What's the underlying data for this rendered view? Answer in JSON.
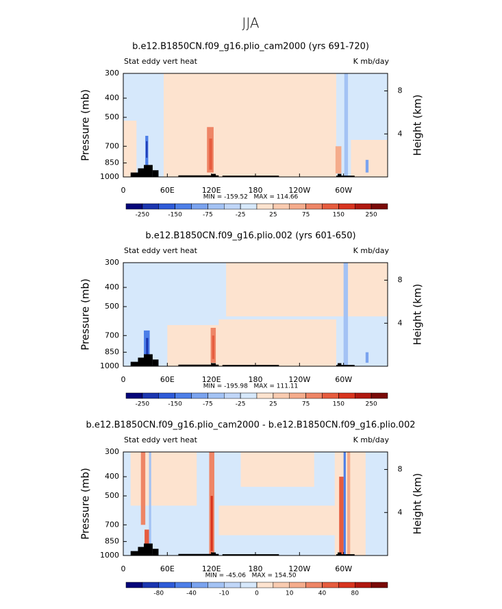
{
  "title": "JJA",
  "chart_data": [
    {
      "type": "contour",
      "title": "b.e12.B1850CN.f09_g16.plio_cam2000 (yrs 691-720)",
      "left_label": "Stat eddy vert heat",
      "right_label": "K mb/day",
      "ylabel": "Pressure (mb)",
      "y2label": "Height (km)",
      "xlim": [
        0,
        360
      ],
      "xticks": [
        0,
        {
          "value": 60,
          "label": "60E"
        },
        {
          "value": 120,
          "label": "120E"
        },
        180,
        {
          "value": 240,
          "label": "120W"
        },
        {
          "value": 300,
          "label": "60W"
        }
      ],
      "ylim": [
        1000,
        300
      ],
      "yticks": [
        300,
        400,
        500,
        700,
        850,
        1000
      ],
      "y_scale": "log",
      "y2lim": [
        0,
        9.63
      ],
      "y2ticks": [
        4,
        8
      ],
      "annotation": "MIN = -159.52   MAX = 114.66",
      "colorbar": {
        "colors": [
          "#050579",
          "#1b36b0",
          "#2e5bd8",
          "#4d7fe8",
          "#7aa3ef",
          "#a3c2f4",
          "#c0d6f8",
          "#d6e8fb",
          "#fde3cf",
          "#f9cbb0",
          "#f5ac8c",
          "#ee8566",
          "#e65c3e",
          "#d8341f",
          "#b01810",
          "#7a0a08"
        ],
        "levels": [
          -250,
          null,
          -150,
          null,
          -75,
          null,
          -25,
          null,
          25,
          null,
          75,
          null,
          150,
          null,
          250
        ]
      }
    },
    {
      "type": "contour",
      "title": "b.e12.B1850CN.f09_g16.plio.002 (yrs 601-650)",
      "left_label": "Stat eddy vert heat",
      "right_label": "K mb/day",
      "ylabel": "Pressure (mb)",
      "y2label": "Height (km)",
      "xlim": [
        0,
        360
      ],
      "xticks": [
        0,
        {
          "value": 60,
          "label": "60E"
        },
        {
          "value": 120,
          "label": "120E"
        },
        180,
        {
          "value": 240,
          "label": "120W"
        },
        {
          "value": 300,
          "label": "60W"
        }
      ],
      "ylim": [
        1000,
        300
      ],
      "yticks": [
        300,
        400,
        500,
        700,
        850,
        1000
      ],
      "y_scale": "log",
      "y2lim": [
        0,
        9.63
      ],
      "y2ticks": [
        4,
        8
      ],
      "annotation": "MIN = -195.98   MAX = 111.11",
      "colorbar": {
        "colors": [
          "#050579",
          "#1b36b0",
          "#2e5bd8",
          "#4d7fe8",
          "#7aa3ef",
          "#a3c2f4",
          "#c0d6f8",
          "#d6e8fb",
          "#fde3cf",
          "#f9cbb0",
          "#f5ac8c",
          "#ee8566",
          "#e65c3e",
          "#d8341f",
          "#b01810",
          "#7a0a08"
        ],
        "levels": [
          -250,
          null,
          -150,
          null,
          -75,
          null,
          -25,
          null,
          25,
          null,
          75,
          null,
          150,
          null,
          250
        ]
      }
    },
    {
      "type": "contour",
      "title": "b.e12.B1850CN.f09_g16.plio_cam2000 - b.e12.B1850CN.f09_g16.plio.002",
      "left_label": "Stat eddy vert heat",
      "right_label": "K mb/day",
      "ylabel": "Pressure (mb)",
      "y2label": "Height (km)",
      "xlim": [
        0,
        360
      ],
      "xticks": [
        0,
        {
          "value": 60,
          "label": "60E"
        },
        {
          "value": 120,
          "label": "120E"
        },
        180,
        {
          "value": 240,
          "label": "120W"
        },
        {
          "value": 300,
          "label": "60W"
        }
      ],
      "ylim": [
        1000,
        300
      ],
      "yticks": [
        300,
        400,
        500,
        700,
        850,
        1000
      ],
      "y_scale": "log",
      "y2lim": [
        0,
        9.63
      ],
      "y2ticks": [
        4,
        8
      ],
      "annotation": "MIN = -45.06   MAX = 154.50",
      "colorbar": {
        "colors": [
          "#050579",
          "#1b36b0",
          "#2e5bd8",
          "#4d7fe8",
          "#7aa3ef",
          "#a3c2f4",
          "#c0d6f8",
          "#d6e8fb",
          "#fde3cf",
          "#f9cbb0",
          "#f5ac8c",
          "#ee8566",
          "#e65c3e",
          "#d8341f",
          "#b01810",
          "#7a0a08"
        ],
        "levels": [
          null,
          -80,
          null,
          -40,
          null,
          -10,
          null,
          0,
          null,
          10,
          null,
          40,
          null,
          80,
          null
        ]
      }
    }
  ]
}
